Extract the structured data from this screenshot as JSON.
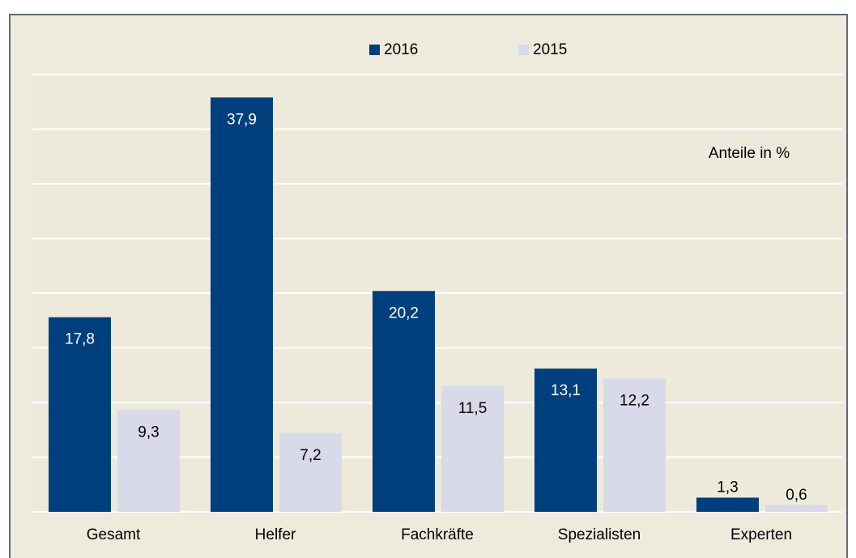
{
  "chart_data": {
    "type": "bar",
    "annotation": "Anteile in %",
    "categories": [
      "Gesamt",
      "Helfer",
      "Fachkräfte",
      "Spezialisten",
      "Experten"
    ],
    "series": [
      {
        "name": "2016",
        "color": "#003f7d",
        "values": [
          17.8,
          37.9,
          20.2,
          13.1,
          1.3
        ],
        "value_labels": [
          "17,8",
          "37,9",
          "20,2",
          "13,1",
          "1,3"
        ]
      },
      {
        "name": "2015",
        "color": "#d8d9e9",
        "values": [
          9.3,
          7.2,
          11.5,
          12.2,
          0.6
        ],
        "value_labels": [
          "9,3",
          "7,2",
          "11,5",
          "12,2",
          "0,6"
        ]
      }
    ],
    "ylim": [
      0,
      40
    ],
    "yticks": [
      0,
      5,
      10,
      15,
      20,
      25,
      30,
      35,
      40
    ],
    "grid": true
  }
}
